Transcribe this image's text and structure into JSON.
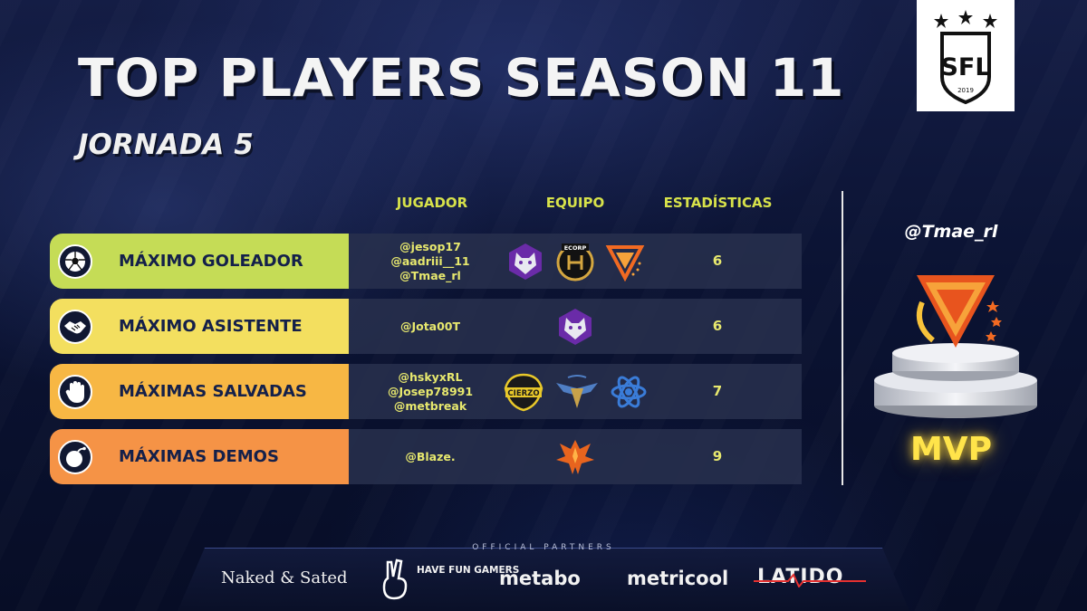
{
  "header": {
    "title": "TOP PLAYERS SEASON 11",
    "subtitle": "JORNADA 5",
    "league_logo_text": "SFL",
    "league_logo_year": "2019"
  },
  "columns": {
    "player": "JUGADOR",
    "team": "EQUIPO",
    "stats": "ESTADÍSTICAS"
  },
  "rows": [
    {
      "award": "MÁXIMO GOLEADOR",
      "color": "#c5dc56",
      "icon": "soccer-ball-icon",
      "players": [
        "@jesop17",
        "@aadriii__11",
        "@Tmae_rl"
      ],
      "teams": [
        "wolf-team-logo",
        "ecorp-team-logo",
        "triangle-team-logo"
      ],
      "stat": "6"
    },
    {
      "award": "MÁXIMO ASISTENTE",
      "color": "#f3df5f",
      "icon": "handshake-icon",
      "players": [
        "@Jota00T"
      ],
      "teams": [
        "wolf-team-logo"
      ],
      "stat": "6"
    },
    {
      "award": "MÁXIMAS SALVADAS",
      "color": "#f7b744",
      "icon": "hand-stop-icon",
      "players": [
        "@hskyxRL",
        "@Josep78991",
        "@metbreak"
      ],
      "teams": [
        "cierzo-team-logo",
        "wings-team-logo",
        "atom-team-logo"
      ],
      "stat": "7"
    },
    {
      "award": "MÁXIMAS DEMOS",
      "color": "#f59346",
      "icon": "bomb-icon",
      "players": [
        "@Blaze."
      ],
      "teams": [
        "phoenix-team-logo"
      ],
      "stat": "9"
    }
  ],
  "mvp": {
    "player": "@Tmae_rl",
    "label": "MVP"
  },
  "footer": {
    "title": "OFFICIAL PARTNERS",
    "partners": [
      "Naked & Sated",
      "HAVE FUN GAMERS",
      "metabo",
      "metricool",
      "LATIDO"
    ]
  },
  "colors": {
    "accent_yellow": "#e7e86e",
    "background": "#0b1333"
  }
}
